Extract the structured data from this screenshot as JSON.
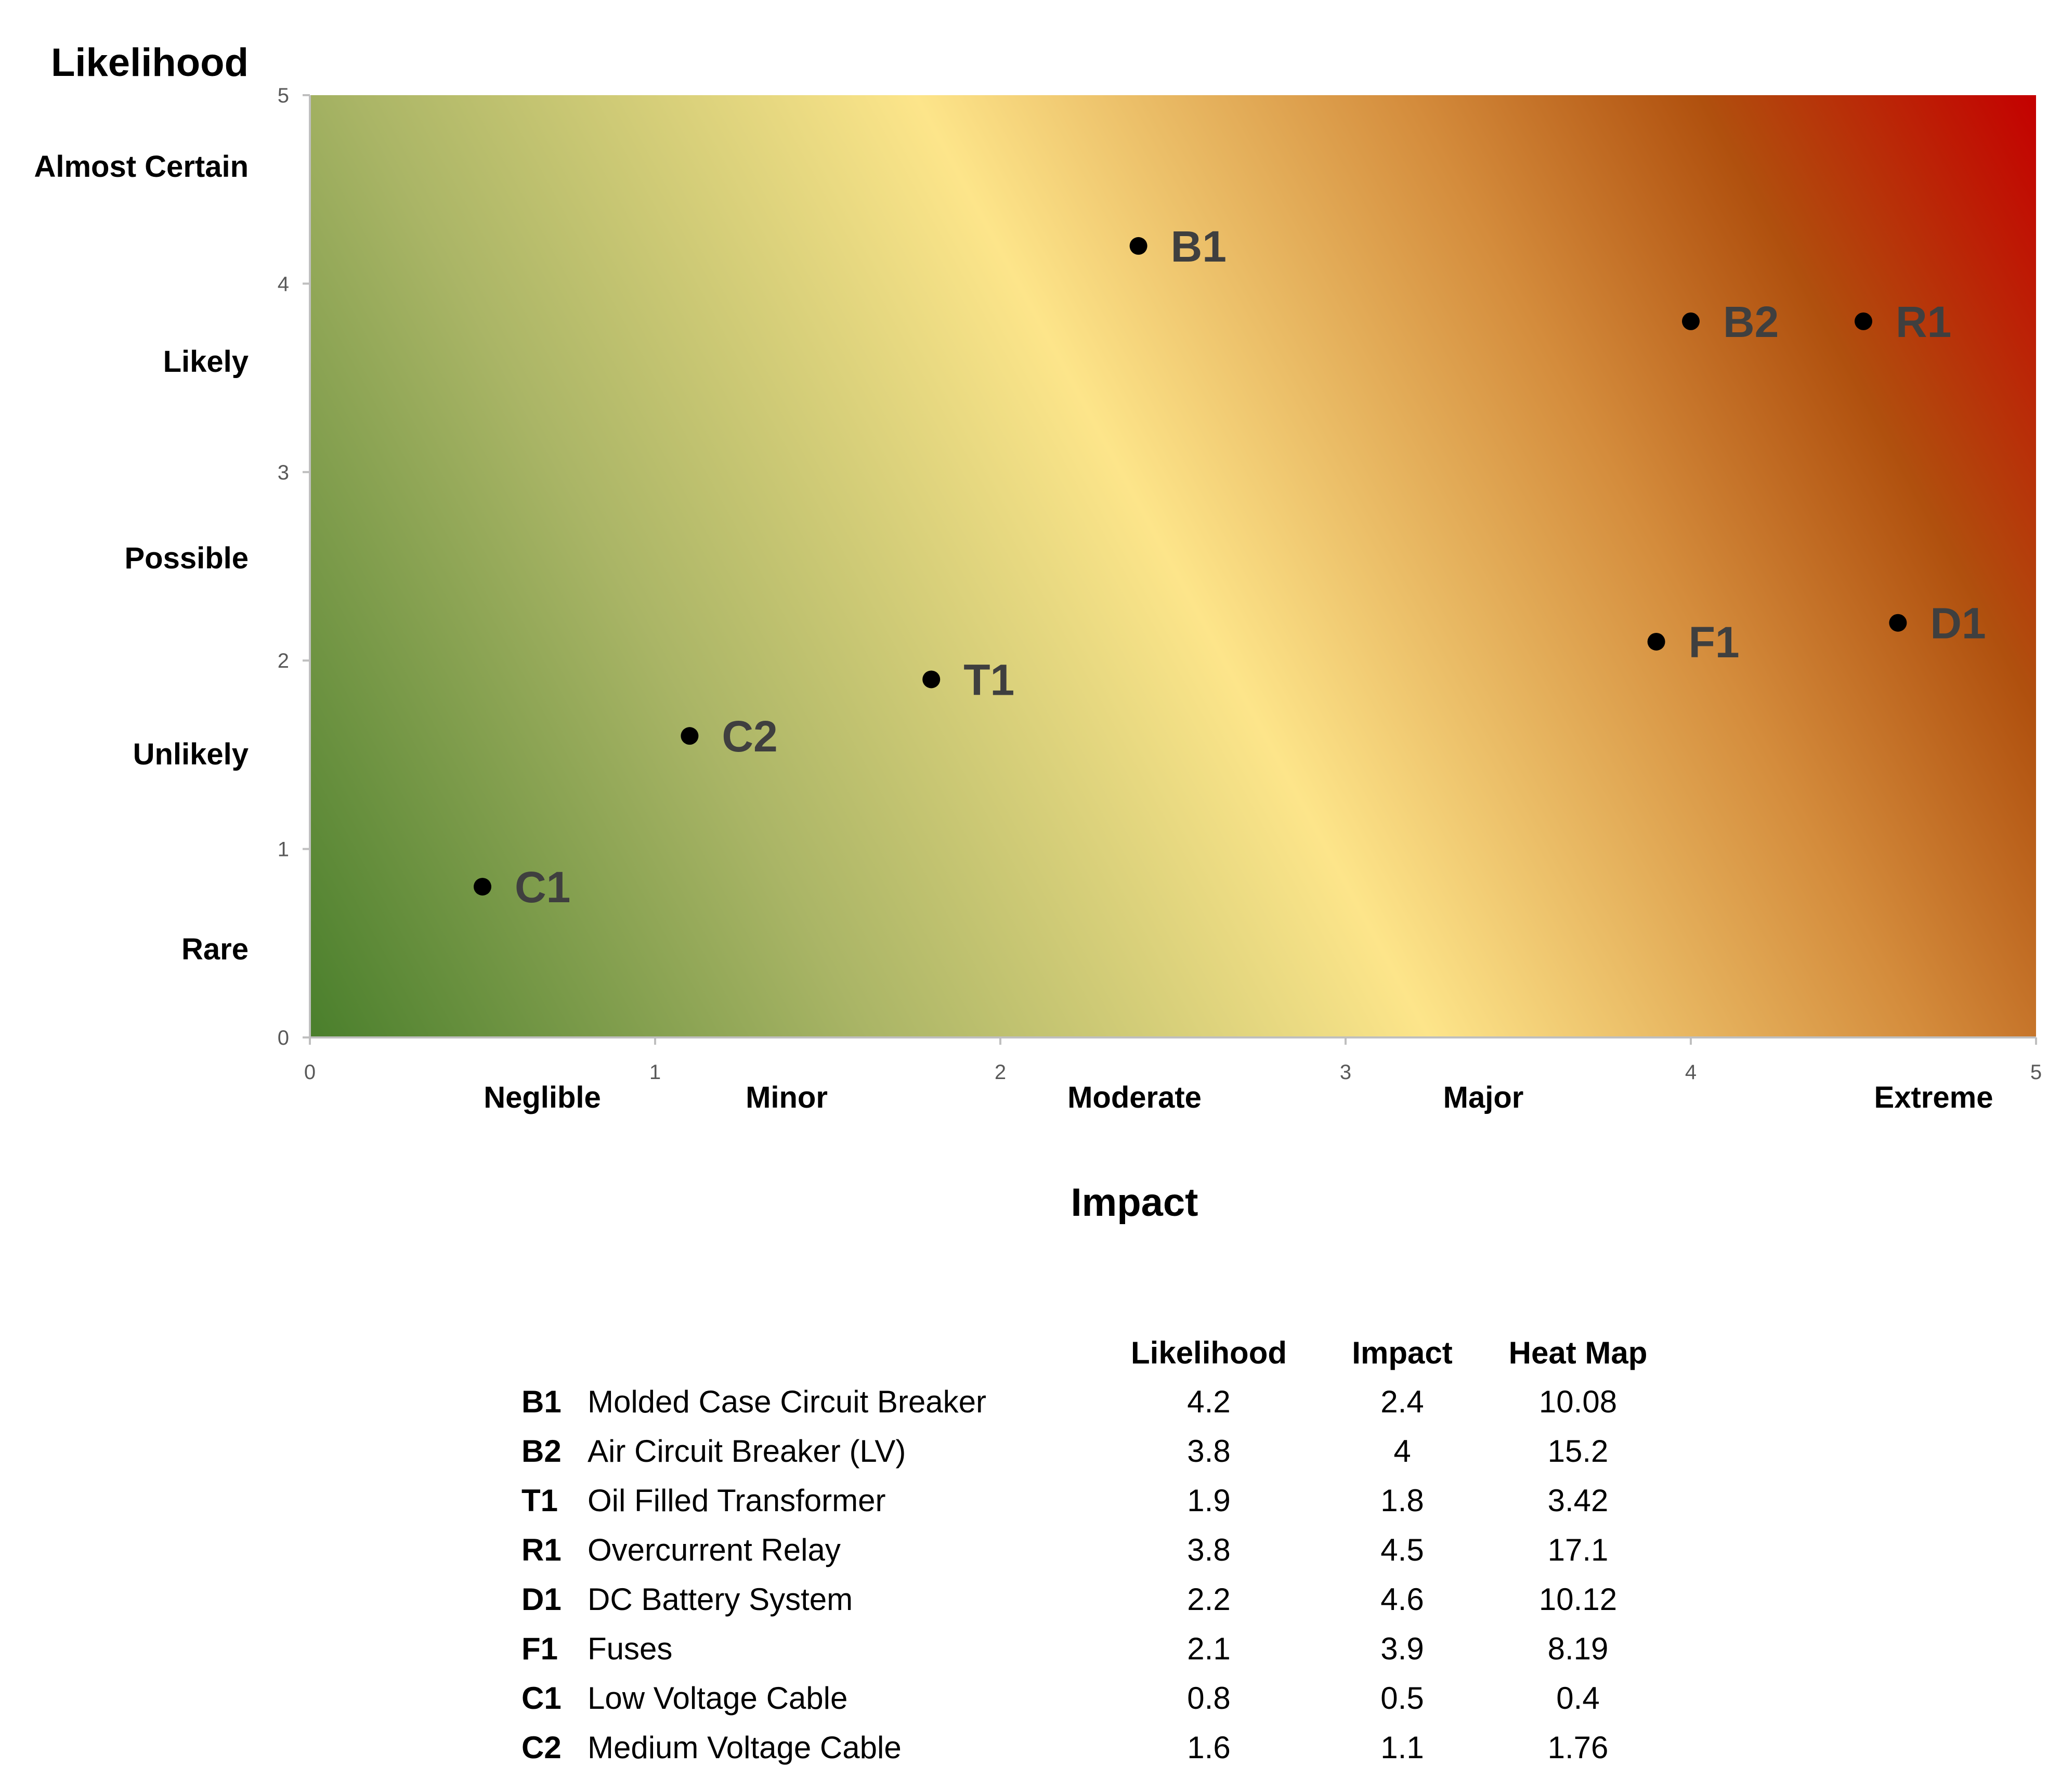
{
  "chart_data": {
    "type": "scatter",
    "title": "",
    "xlabel": "Impact",
    "ylabel": "Likelihood",
    "xlim": [
      0,
      5
    ],
    "ylim": [
      0,
      5
    ],
    "x_ticks": [
      "0",
      "1",
      "2",
      "3",
      "4",
      "5"
    ],
    "y_ticks": [
      "0",
      "1",
      "2",
      "3",
      "4",
      "5"
    ],
    "x_categories": [
      "Neglible",
      "Minor",
      "Moderate",
      "Major",
      "Extreme"
    ],
    "y_categories": [
      "Rare",
      "Unlikely",
      "Possible",
      "Likely",
      "Almost Certain"
    ],
    "background": "diagonal heat map gradient (green to yellow to red)",
    "colors": {
      "green": "#4a7f2c",
      "yellow": "#fde58a",
      "orange": "#b0500e",
      "red": "#c40000",
      "marker": "#000000",
      "label": "#3f3f3f"
    },
    "points": [
      {
        "id": "B1",
        "x": 2.4,
        "y": 4.2
      },
      {
        "id": "B2",
        "x": 4.0,
        "y": 3.8
      },
      {
        "id": "R1",
        "x": 4.5,
        "y": 3.8
      },
      {
        "id": "T1",
        "x": 1.8,
        "y": 1.9
      },
      {
        "id": "C2",
        "x": 1.1,
        "y": 1.6
      },
      {
        "id": "C1",
        "x": 0.5,
        "y": 0.8
      },
      {
        "id": "F1",
        "x": 3.9,
        "y": 2.1
      },
      {
        "id": "D1",
        "x": 4.6,
        "y": 2.2
      }
    ]
  },
  "table": {
    "headers": [
      "Likelihood",
      "Impact",
      "Heat Map"
    ],
    "rows": [
      {
        "id": "B1",
        "name": "Molded Case Circuit Breaker",
        "likelihood": "4.2",
        "impact": "2.4",
        "heat": "10.08"
      },
      {
        "id": "B2",
        "name": "Air Circuit Breaker (LV)",
        "likelihood": "3.8",
        "impact": "4",
        "heat": "15.2"
      },
      {
        "id": "T1",
        "name": "Oil Filled Transformer",
        "likelihood": "1.9",
        "impact": "1.8",
        "heat": "3.42"
      },
      {
        "id": "R1",
        "name": "Overcurrent Relay",
        "likelihood": "3.8",
        "impact": "4.5",
        "heat": "17.1"
      },
      {
        "id": "D1",
        "name": "DC Battery System",
        "likelihood": "2.2",
        "impact": "4.6",
        "heat": "10.12"
      },
      {
        "id": "F1",
        "name": "Fuses",
        "likelihood": "2.1",
        "impact": "3.9",
        "heat": "8.19"
      },
      {
        "id": "C1",
        "name": "Low Voltage Cable",
        "likelihood": "0.8",
        "impact": "0.5",
        "heat": "0.4"
      },
      {
        "id": "C2",
        "name": "Medium Voltage Cable",
        "likelihood": "1.6",
        "impact": "1.1",
        "heat": "1.76"
      }
    ]
  }
}
